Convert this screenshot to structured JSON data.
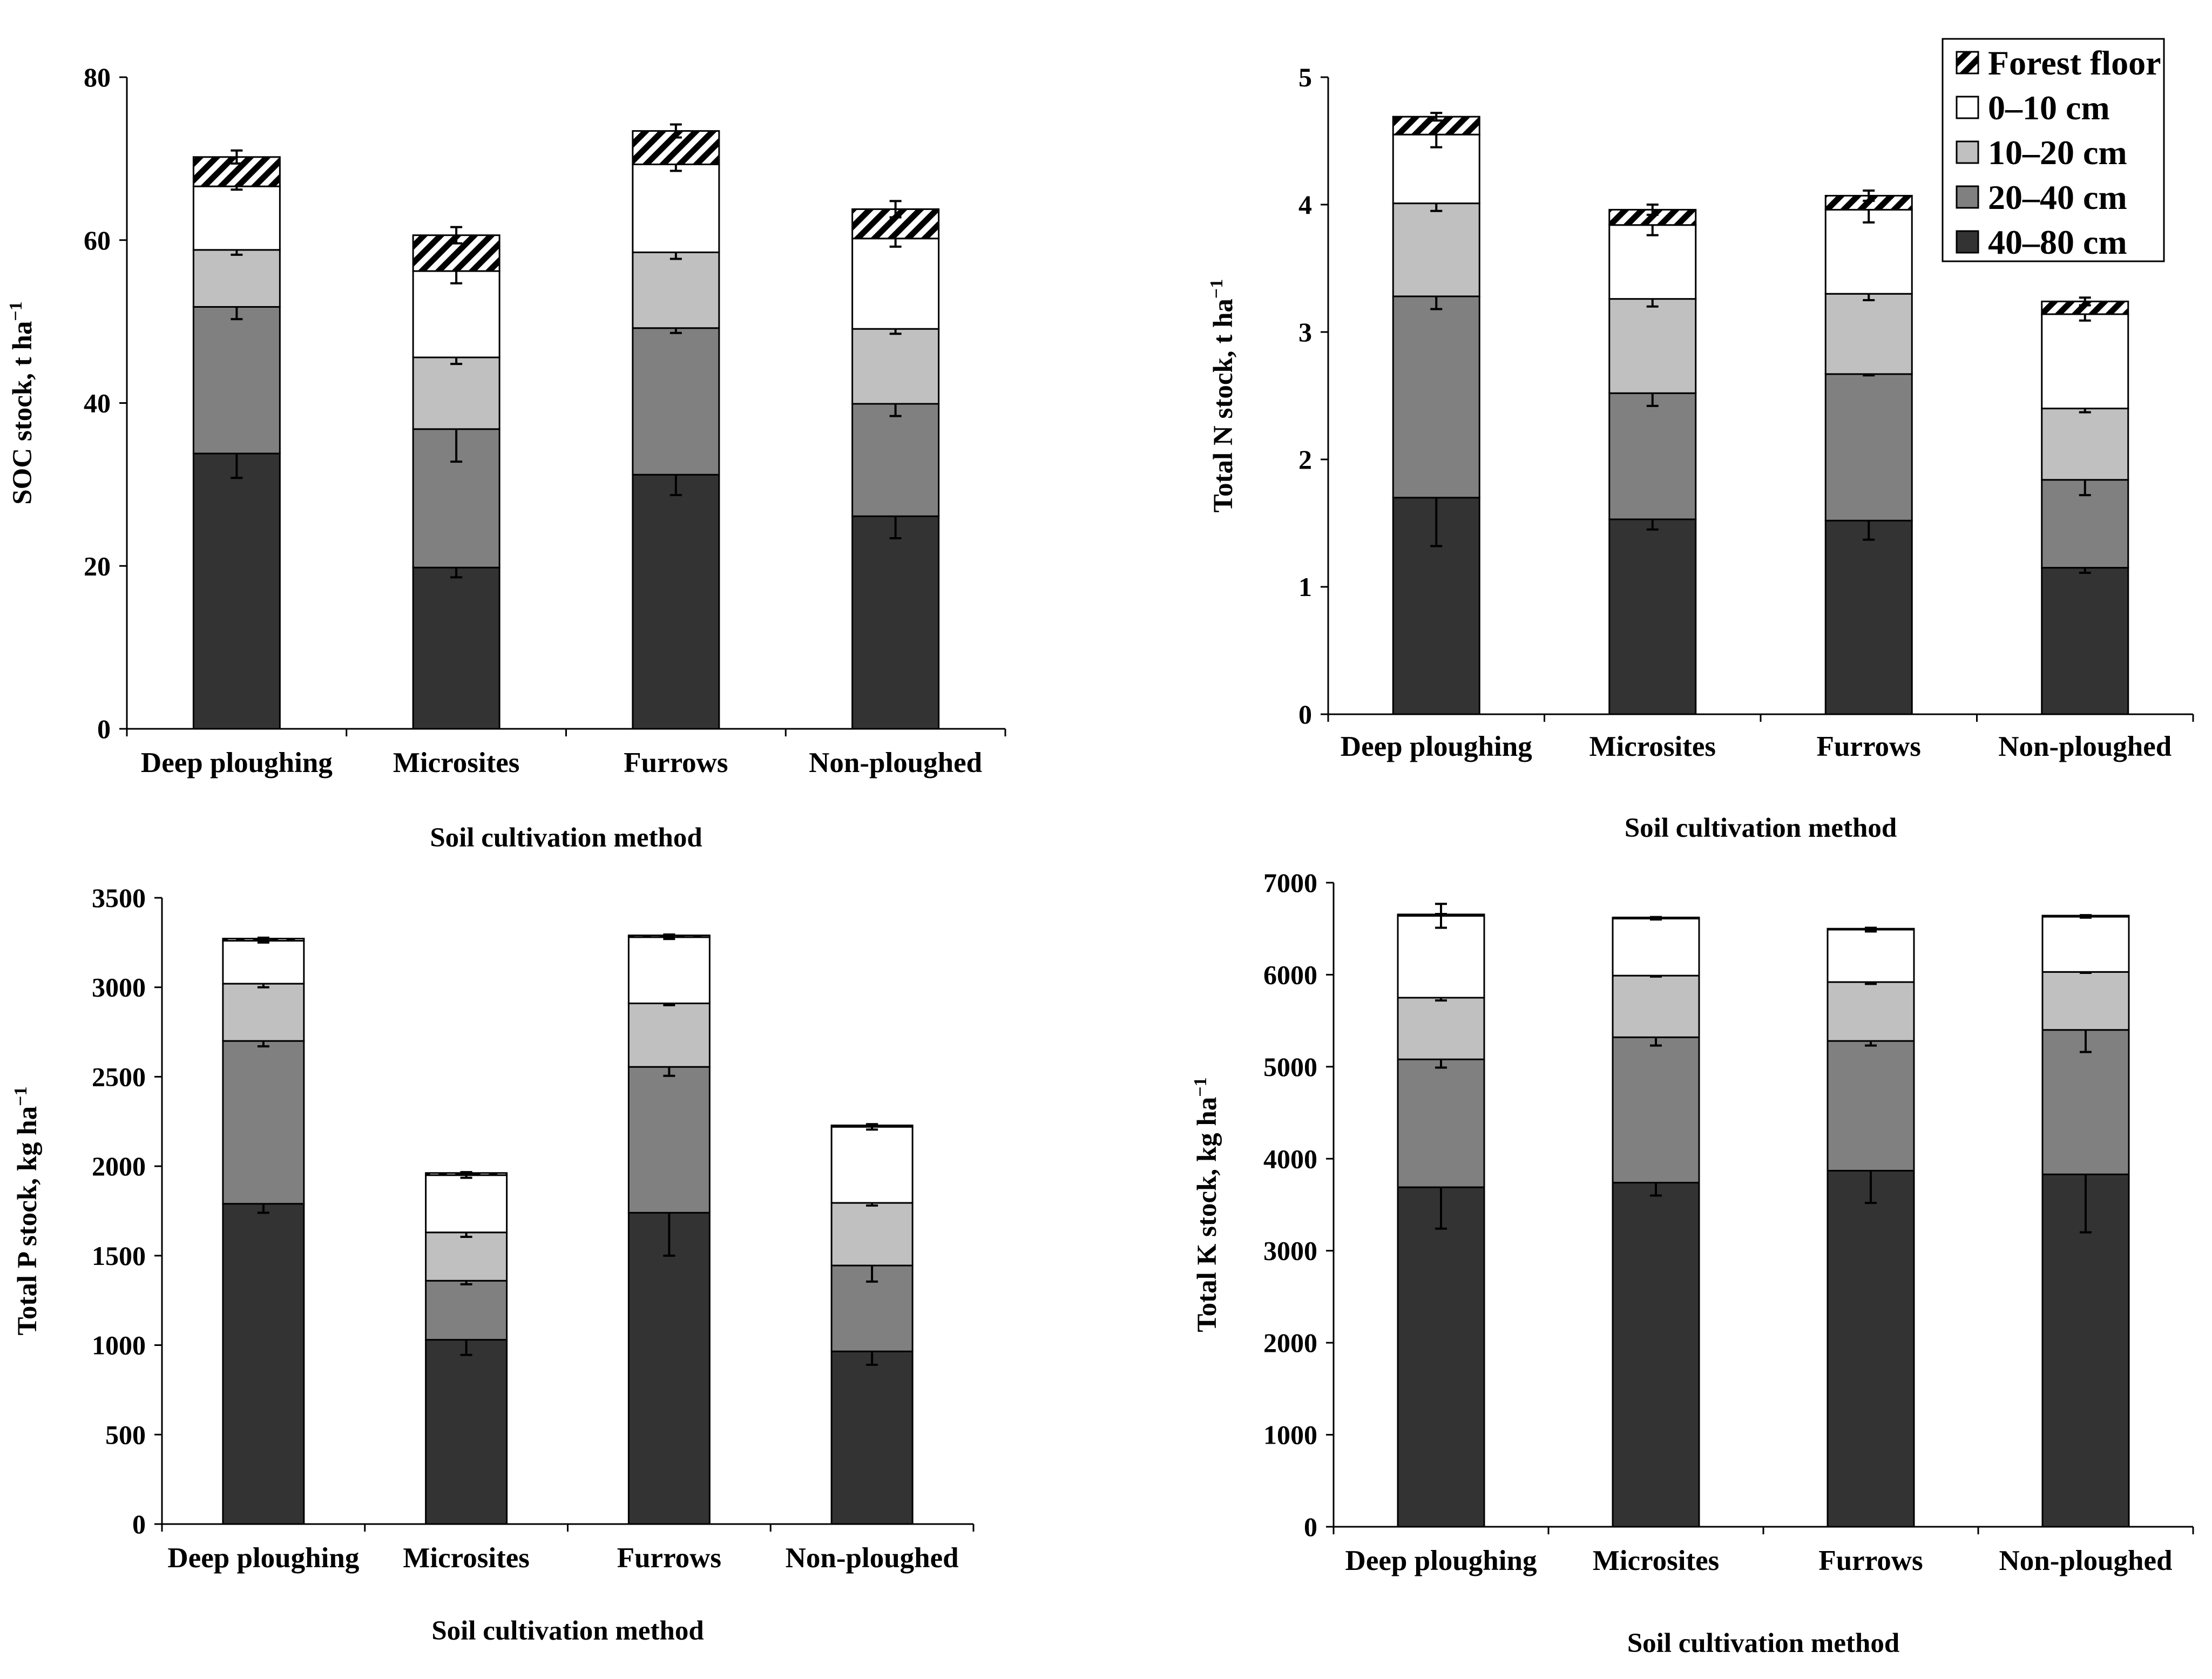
{
  "figure": {
    "x_axis_title": "Soil cultivation method",
    "legend_items": [
      {
        "key": "ff",
        "label": "Forest floor",
        "fill": "hatch"
      },
      {
        "key": "l1",
        "label": "0–10 cm",
        "fill": "#ffffff"
      },
      {
        "key": "l2",
        "label": "10–20 cm",
        "fill": "#c0c0c0"
      },
      {
        "key": "l3",
        "label": "20–40 cm",
        "fill": "#808080"
      },
      {
        "key": "l4",
        "label": "40–80 cm",
        "fill": "#333333"
      }
    ]
  },
  "chart_data": [
    {
      "id": "soc",
      "type": "bar",
      "stacked": true,
      "title": "",
      "xlabel": "Soil cultivation method",
      "ylabel": "SOC stock, t ha",
      "ylabel_superscript": "−1",
      "ylim": [
        0,
        80
      ],
      "yticks": [
        "0",
        "20",
        "40",
        "60",
        "80"
      ],
      "categories": [
        "Deep ploughing",
        "Microsites",
        "Furrows",
        "Non-ploughed"
      ],
      "series": [
        {
          "name": "40–80 cm",
          "values": [
            33.8,
            19.8,
            31.2,
            26.1
          ],
          "errors": [
            3.0,
            1.2,
            2.5,
            2.7
          ]
        },
        {
          "name": "20–40 cm",
          "values": [
            18.0,
            17.0,
            18.0,
            13.8
          ],
          "errors": [
            1.5,
            4.0,
            0.6,
            1.5
          ]
        },
        {
          "name": "10–20 cm",
          "values": [
            7.0,
            8.8,
            9.3,
            9.2
          ],
          "errors": [
            0.6,
            0.8,
            0.8,
            0.6
          ]
        },
        {
          "name": "0–10 cm",
          "values": [
            7.8,
            10.6,
            10.8,
            11.1
          ],
          "errors": [
            0.4,
            1.5,
            0.8,
            1.0
          ]
        },
        {
          "name": "Forest floor",
          "values": [
            3.6,
            4.4,
            4.1,
            3.6
          ],
          "errors": [
            0.8,
            1.0,
            0.8,
            1.0
          ]
        }
      ]
    },
    {
      "id": "n",
      "type": "bar",
      "stacked": true,
      "title": "",
      "xlabel": "Soil cultivation method",
      "ylabel": "Total N stock, t ha",
      "ylabel_superscript": "−1",
      "ylim": [
        0,
        5
      ],
      "yticks": [
        "0",
        "1",
        "2",
        "3",
        "4",
        "5"
      ],
      "categories": [
        "Deep ploughing",
        "Microsites",
        "Furrows",
        "Non-ploughed"
      ],
      "series": [
        {
          "name": "40–80 cm",
          "values": [
            1.7,
            1.53,
            1.52,
            1.15
          ],
          "errors": [
            0.38,
            0.08,
            0.15,
            0.04
          ]
        },
        {
          "name": "20–40 cm",
          "values": [
            1.58,
            0.99,
            1.15,
            0.69
          ],
          "errors": [
            0.1,
            0.1,
            0.01,
            0.12
          ]
        },
        {
          "name": "10–20 cm",
          "values": [
            0.73,
            0.74,
            0.63,
            0.56
          ],
          "errors": [
            0.06,
            0.06,
            0.05,
            0.03
          ]
        },
        {
          "name": "0–10 cm",
          "values": [
            0.54,
            0.58,
            0.66,
            0.74
          ],
          "errors": [
            0.1,
            0.08,
            0.1,
            0.05
          ]
        },
        {
          "name": "Forest floor",
          "values": [
            0.14,
            0.12,
            0.11,
            0.1
          ],
          "errors": [
            0.03,
            0.04,
            0.04,
            0.03
          ]
        }
      ]
    },
    {
      "id": "p",
      "type": "bar",
      "stacked": true,
      "title": "",
      "xlabel": "Soil cultivation method",
      "ylabel": "Total P stock, kg ha",
      "ylabel_superscript": "−1",
      "ylim": [
        0,
        3500
      ],
      "yticks": [
        "0",
        "500",
        "1000",
        "1500",
        "2000",
        "2500",
        "3000",
        "3500"
      ],
      "categories": [
        "Deep ploughing",
        "Microsites",
        "Furrows",
        "Non-ploughed"
      ],
      "series": [
        {
          "name": "40–80 cm",
          "values": [
            1790,
            1030,
            1740,
            965
          ],
          "errors": [
            50,
            85,
            240,
            75
          ]
        },
        {
          "name": "20–40 cm",
          "values": [
            910,
            330,
            815,
            480
          ],
          "errors": [
            30,
            20,
            50,
            90
          ]
        },
        {
          "name": "10–20 cm",
          "values": [
            320,
            270,
            355,
            350
          ],
          "errors": [
            20,
            25,
            10,
            15
          ]
        },
        {
          "name": "0–10 cm",
          "values": [
            240,
            320,
            370,
            425
          ],
          "errors": [
            10,
            15,
            10,
            15
          ]
        },
        {
          "name": "Forest floor",
          "values": [
            12,
            12,
            10,
            8
          ],
          "errors": [
            5,
            5,
            5,
            5
          ]
        }
      ]
    },
    {
      "id": "k",
      "type": "bar",
      "stacked": true,
      "title": "",
      "xlabel": "Soil cultivation method",
      "ylabel": "Total K stock, kg ha",
      "ylabel_superscript": "−1",
      "ylim": [
        0,
        7000
      ],
      "yticks": [
        "0",
        "1000",
        "2000",
        "3000",
        "4000",
        "5000",
        "6000",
        "7000"
      ],
      "categories": [
        "Deep ploughing",
        "Microsites",
        "Furrows",
        "Non-ploughed"
      ],
      "series": [
        {
          "name": "40–80 cm",
          "values": [
            3690,
            3740,
            3870,
            3830
          ],
          "errors": [
            450,
            140,
            350,
            630
          ]
        },
        {
          "name": "20–40 cm",
          "values": [
            1390,
            1580,
            1410,
            1570
          ],
          "errors": [
            90,
            90,
            50,
            240
          ]
        },
        {
          "name": "10–20 cm",
          "values": [
            670,
            670,
            640,
            630
          ],
          "errors": [
            30,
            10,
            20,
            10
          ]
        },
        {
          "name": "0–10 cm",
          "values": [
            890,
            620,
            570,
            600
          ],
          "errors": [
            130,
            10,
            20,
            10
          ]
        },
        {
          "name": "Forest floor",
          "values": [
            15,
            12,
            10,
            12
          ],
          "errors": [
            5,
            5,
            5,
            5
          ]
        }
      ]
    }
  ]
}
